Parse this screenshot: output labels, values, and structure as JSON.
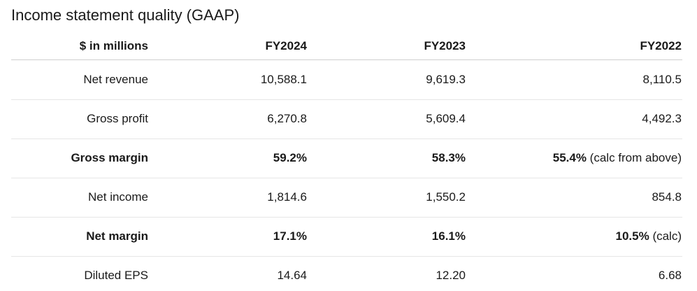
{
  "title": "Income statement quality (GAAP)",
  "table": {
    "header": [
      "$ in millions",
      "FY2024",
      "FY2023",
      "FY2022"
    ],
    "rows": [
      {
        "label": "Net revenue",
        "cells": [
          "10,588.1",
          "9,619.3",
          "8,110.5"
        ]
      },
      {
        "label": "Gross profit",
        "cells": [
          "6,270.8",
          "5,609.4",
          "4,492.3"
        ]
      },
      {
        "label": "Gross margin",
        "bold": true,
        "cells": [
          "59.2%",
          "58.3%",
          {
            "value": "55.4%",
            "note": "(calc from above)"
          }
        ]
      },
      {
        "label": "Net income",
        "cells": [
          "1,814.6",
          "1,550.2",
          "854.8"
        ]
      },
      {
        "label": "Net margin",
        "bold": true,
        "cells": [
          "17.1%",
          "16.1%",
          {
            "value": "10.5%",
            "note": "(calc)"
          }
        ]
      },
      {
        "label": "Diluted EPS",
        "cells": [
          "14.64",
          "12.20",
          "6.68"
        ]
      }
    ]
  }
}
